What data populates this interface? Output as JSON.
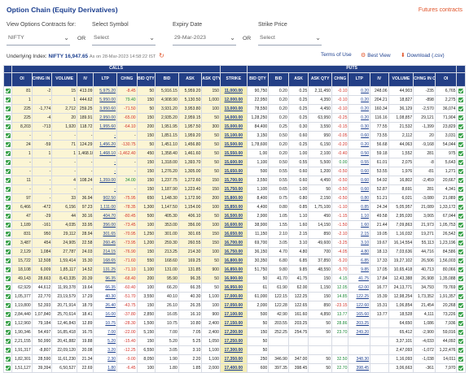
{
  "header": {
    "title": "Option Chain (Equity Derivatives)",
    "futures_link": "Futures contracts"
  },
  "filters": {
    "view_label": "View Options Contracts for:",
    "view_value": "NIFTY",
    "or1": "OR",
    "symbol_label": "Select Symbol",
    "symbol_value": "Select",
    "expiry_label": "Expiry Date",
    "expiry_value": "29-Mar-2023",
    "or2": "OR",
    "strike_label": "Strike Price",
    "strike_value": "Select"
  },
  "underlying": {
    "label": "Underlying Index:",
    "value": "NIFTY 16,947.65",
    "as_of": "As on 28-Mar-2023 14:58:22 IST"
  },
  "actions": {
    "terms": "Terms of Use",
    "best_view": "Best View",
    "download": "Download (.csv)"
  },
  "table": {
    "group_calls": "CALLS",
    "group_puts": "PUTS",
    "columns": [
      "OI",
      "CHNG IN OI",
      "VOLUME",
      "IV",
      "LTP",
      "CHNG",
      "BID QTY",
      "BID",
      "ASK",
      "ASK QTY",
      "STRIKE",
      "BID QTY",
      "BID",
      "ASK",
      "ASK QTY",
      "CHNG",
      "LTP",
      "IV",
      "VOLUME",
      "CHNG IN OI",
      "OI"
    ],
    "rows": [
      {
        "itm": true,
        "cells": [
          "81",
          "-2",
          "15",
          "413.09",
          "5,975.20",
          "-8.45",
          "50",
          "5,916.15",
          "5,959.20",
          "150",
          "11,000.00",
          "90,750",
          "0.20",
          "0.25",
          "2,11,450",
          "-0.10",
          "0.20",
          "248.06",
          "44,903",
          "-235",
          "6,765"
        ]
      },
      {
        "itm": true,
        "cells": [
          "1",
          "-",
          "1",
          "444.62",
          "5,950.00",
          "79.40",
          "150",
          "4,908.90",
          "5,130.50",
          "1,000",
          "12,000.00",
          "22,950",
          "0.20",
          "0.25",
          "4,350",
          "-0.10",
          "0.20",
          "204.21",
          "18,827",
          "-898",
          "2,275"
        ]
      },
      {
        "itm": true,
        "cells": [
          "225",
          "-1,774",
          "2,712",
          "259.25",
          "3,950.60",
          "-71.50",
          "50",
          "3,931.20",
          "3,953.80",
          "100",
          "13,000.00",
          "78,550",
          "0.20",
          "0.25",
          "4,450",
          "-0.10",
          "0.20",
          "160.34",
          "36,129",
          "-2,570",
          "36,074"
        ]
      },
      {
        "itm": true,
        "cells": [
          "225",
          "-4",
          "20",
          "189.91",
          "2,950.00",
          "-65.00",
          "150",
          "2,935.20",
          "2,959.15",
          "50",
          "14,000.00",
          "1,28,250",
          "0.20",
          "0.25",
          "63,950",
          "-0.25",
          "0.20",
          "116.16",
          "1,08,857",
          "29,121",
          "71,904"
        ]
      },
      {
        "itm": true,
        "cells": [
          "8,203",
          "-713",
          "1,920",
          "118.72",
          "1,955.60",
          "-64.10",
          "200",
          "1,951.95",
          "1,957.50",
          "300",
          "15,000.00",
          "84,400",
          "0.25",
          "0.30",
          "3,550",
          "-0.15",
          "0.30",
          "77.55",
          "21,532",
          "-1,399",
          "23,829"
        ]
      },
      {
        "itm": true,
        "cells": [
          "-",
          "-",
          "-",
          "-",
          "-",
          "-",
          "150",
          "1,851.15",
          "1,959.20",
          "50",
          "15,100.00",
          "3,150",
          "0.50",
          "0.60",
          "950",
          "-0.05",
          "0.60",
          "73.55",
          "2,112",
          "20",
          "3,031"
        ]
      },
      {
        "itm": true,
        "cells": [
          "24",
          "-59",
          "71",
          "124.29",
          "1,456.20",
          "-130.75",
          "50",
          "1,451.10",
          "1,456.80",
          "50",
          "15,500.00",
          "1,78,600",
          "0.20",
          "0.25",
          "6,150",
          "-0.20",
          "0.20",
          "56.68",
          "44,063",
          "-9,168",
          "54,044"
        ]
      },
      {
        "itm": true,
        "cells": [
          "1",
          "1",
          "1",
          "1,468.10",
          "1,468.10",
          "-1,462.40",
          "450",
          "1,358.40",
          "1,461.60",
          "50",
          "15,550.00",
          "1,00",
          "0.20",
          "1.00",
          "2,100",
          "-0.40",
          "0.50",
          "59.18",
          "1,552",
          "281",
          "975"
        ]
      },
      {
        "itm": true,
        "cells": [
          "-",
          "-",
          "-",
          "-",
          "-",
          "-",
          "150",
          "1,318.00",
          "1,393.70",
          "50",
          "15,600.00",
          "1,100",
          "0.50",
          "0.55",
          "5,500",
          "0.00",
          "0.55",
          "61.01",
          "2,075",
          "-8",
          "5,643"
        ]
      },
      {
        "itm": true,
        "cells": [
          "-",
          "-",
          "-",
          "-",
          "-",
          "-",
          "150",
          "1,276.20",
          "1,305.00",
          "50",
          "15,650.00",
          "500",
          "0.55",
          "0.60",
          "1,200",
          "-0.50",
          "0.60",
          "53.55",
          "1,976",
          "-81",
          "1,271"
        ]
      },
      {
        "itm": true,
        "cells": [
          "11",
          "-",
          "4",
          "108.24",
          "1,359.00",
          "34.00",
          "150",
          "1,237.75",
          "1,272.60",
          "150",
          "15,700.00",
          "3,550",
          "0.55",
          "0.60",
          "4,450",
          "-0.50",
          "0.60",
          "54.92",
          "16,802",
          "-2,459",
          "20,667"
        ]
      },
      {
        "itm": true,
        "cells": [
          "-",
          "-",
          "-",
          "-",
          "-",
          "-",
          "150",
          "1,187.90",
          "1,223.40",
          "150",
          "15,750.00",
          "1,100",
          "0.65",
          "1.00",
          "50",
          "-0.50",
          "0.60",
          "52.87",
          "8,691",
          "281",
          "4,341"
        ]
      },
      {
        "itm": true,
        "cells": [
          "97",
          "-",
          "33",
          "36.94",
          "902.50",
          "-75.95",
          "650",
          "1,148.30",
          "1,172.90",
          "200",
          "15,800.00",
          "8,400",
          "0.75",
          "0.80",
          "2,150",
          "-0.50",
          "0.80",
          "51.21",
          "6,021",
          "-3,080",
          "21,089"
        ]
      },
      {
        "itm": true,
        "cells": [
          "6,466",
          "-472",
          "6,156",
          "97.23",
          "1,111.00",
          "-78.35",
          "1,300",
          "1,147.50",
          "1,154.00",
          "100",
          "15,850.00",
          "4,400",
          "0.80",
          "0.85",
          "1,75,100",
          "-1.10",
          "0.85",
          "24.34",
          "5,05,957",
          "21,089",
          "1,33,172"
        ]
      },
      {
        "itm": true,
        "cells": [
          "47",
          "-29",
          "44",
          "30.16",
          "404.70",
          "-80.45",
          "500",
          "405.30",
          "406.10",
          "50",
          "16,500.00",
          "2,900",
          "1.05",
          "1.10",
          "450",
          "-1.15",
          "1.10",
          "49.58",
          "2,95,020",
          "3,065",
          "67,044"
        ]
      },
      {
        "itm": true,
        "cells": [
          "1,189",
          "-161",
          "4,035",
          "33.95",
          "356.00",
          "-73.45",
          "100",
          "353.00",
          "356.00",
          "100",
          "16,600.00",
          "38,900",
          "1.55",
          "1.60",
          "14,150",
          "-1.50",
          "1.60",
          "21.44",
          "7,09,863",
          "21,973",
          "1,05,753"
        ]
      },
      {
        "itm": true,
        "cells": [
          "831",
          "950",
          "29,112",
          "28.94",
          "301.65",
          "-70.95",
          "1,250",
          "301.00",
          "301.65",
          "150",
          "16,650.00",
          "11,150",
          "2.10",
          "2.15",
          "850",
          "-2.10",
          "2.15",
          "19.05",
          "1,16,032",
          "19,271",
          "26,542"
        ]
      },
      {
        "itm": true,
        "cells": [
          "3,487",
          "454",
          "24,905",
          "22.58",
          "260.45",
          "-73.95",
          "1,200",
          "259.30",
          "260.55",
          "150",
          "16,700.00",
          "69,700",
          "3.05",
          "3.10",
          "49,600",
          "-3.25",
          "3.10",
          "19.67",
          "16,14,554",
          "55,113",
          "1,23,196"
        ]
      },
      {
        "itm": true,
        "cells": [
          "2,129",
          "1,084",
          "27,787",
          "24.03",
          "214.15",
          "-76.90",
          "150",
          "213.25",
          "214.30",
          "100",
          "16,750.00",
          "36,150",
          "4.70",
          "4.80",
          "700",
          "-4.05",
          "4.80",
          "18.13",
          "7,03,636",
          "44,716",
          "84,586"
        ]
      },
      {
        "itm": true,
        "cells": [
          "15,722",
          "12,508",
          "1,59,414",
          "15.30",
          "168.65",
          "-71.60",
          "550",
          "168.60",
          "169.25",
          "50",
          "16,800.00",
          "30,350",
          "6.80",
          "6.85",
          "37,850",
          "-5.20",
          "6.85",
          "17.33",
          "19,27,102",
          "26,506",
          "1,56,003"
        ]
      },
      {
        "itm": true,
        "cells": [
          "18,108",
          "6,009",
          "1,85,117",
          "14.52",
          "131.25",
          "-71.10",
          "1,100",
          "131.00",
          "131.85",
          "900",
          "16,850.00",
          "51,750",
          "9.80",
          "9.85",
          "48,550",
          "-5.70",
          "9.85",
          "17.05",
          "10,65,418",
          "40,713",
          "80,066"
        ]
      },
      {
        "itm": true,
        "cells": [
          "49,143",
          "28,663",
          "8,43,335",
          "20.39",
          "96.35",
          "-68.40",
          "200",
          "95.90",
          "96.35",
          "50",
          "16,900.00",
          "50",
          "41.70",
          "41.75",
          "150",
          "4.15",
          "41.75",
          "17.84",
          "12,43,388",
          "26,908",
          "1,35,088"
        ]
      },
      {
        "itm": false,
        "cells": [
          "62,929",
          "44,612",
          "11,99,378",
          "19.64",
          "66.35",
          "-60.40",
          "100",
          "66.20",
          "66.35",
          "50",
          "16,950.00",
          "61",
          "61.90",
          "62.00",
          "1,150",
          "12.05",
          "62.00",
          "16.77",
          "24,13,771",
          "34,793",
          "79,769"
        ]
      },
      {
        "itm": false,
        "cells": [
          "1,05,377",
          "22,770",
          "23,19,579",
          "17.29",
          "40.30",
          "-51.70",
          "3,550",
          "40.10",
          "40.30",
          "1,100",
          "17,000.00",
          "61,000",
          "122.15",
          "122.25",
          "150",
          "14.85",
          "122.25",
          "15.39",
          "12,98,254",
          "1,73,352",
          "1,91,357"
        ]
      },
      {
        "itm": false,
        "cells": [
          "1,19,800",
          "52,393",
          "20,71,914",
          "18.79",
          "26.40",
          "-43.75",
          "150",
          "26.10",
          "26.35",
          "100",
          "17,050.00",
          "2,000",
          "122.28",
          "122.65",
          "850",
          "-23.15",
          "122.60",
          "15.31",
          "1,06,854",
          "21,454",
          "20,268"
        ]
      },
      {
        "itm": false,
        "cells": [
          "2,84,440",
          "1,07,840",
          "25,70,614",
          "18.41",
          "16.00",
          "-37.80",
          "2,850",
          "16.05",
          "16.10",
          "900",
          "17,100.00",
          "500",
          "42.90",
          "161.60",
          "4,850",
          "13.77",
          "165.60",
          "13.77",
          "18,528",
          "4,111",
          "73,226"
        ]
      },
      {
        "itm": false,
        "cells": [
          "1,12,960",
          "79,184",
          "12,46,843",
          "12.89",
          "10.75",
          "-28.30",
          "1,500",
          "10.75",
          "10.80",
          "2,400",
          "17,150.00",
          "50",
          "203.55",
          "203.25",
          "50",
          "28.86",
          "203.25",
          "",
          "64,650",
          "1,086",
          "7,936"
        ]
      },
      {
        "itm": false,
        "cells": [
          "1,90,346",
          "54,497",
          "16,85,418",
          "16.75",
          "7.00",
          "-22.00",
          "5,150",
          "7.00",
          "7.05",
          "2,400",
          "17,200.00",
          "150",
          "252.25",
          "254.75",
          "50",
          "23.70",
          "249.20",
          "",
          "65,412",
          "-2,900",
          "59,016"
        ]
      },
      {
        "itm": false,
        "cells": [
          "2,21,155",
          "50,990",
          "20,41,882",
          "19.88",
          "5.20",
          "-15.40",
          "150",
          "5.20",
          "5.25",
          "1,050",
          "17,250.00",
          "50",
          "",
          "",
          "",
          "",
          "",
          "",
          "3,37,101",
          "-4,033",
          "44,092"
        ]
      },
      {
        "itm": false,
        "cells": [
          "1,91,317",
          "-8,807",
          "22,09,120",
          "20.08",
          "3.20",
          "-12.25",
          "6,550",
          "3.05",
          "3.10",
          "1,100",
          "17,300.00",
          "50",
          "",
          "",
          "",
          "",
          "",
          "",
          "2,47,093",
          "-1,072",
          "1,22,476"
        ]
      },
      {
        "itm": false,
        "cells": [
          "1,82,301",
          "28,590",
          "11,61,230",
          "21.34",
          "2.30",
          "-9.00",
          "8,050",
          "1.90",
          "2.20",
          "1,100",
          "17,350.00",
          "250",
          "346.90",
          "347.00",
          "50",
          "32.50",
          "348.30",
          "",
          "1,16,093",
          "-1,038",
          "14,011"
        ]
      },
      {
        "itm": false,
        "cells": [
          "1,51,127",
          "39,394",
          "6,50,527",
          "22.69",
          "1.80",
          "-6.45",
          "100",
          "1.80",
          "1.85",
          "2,000",
          "17,400.00",
          "600",
          "397.35",
          "398.45",
          "50",
          "22.70",
          "398.45",
          "",
          "3,06,663",
          "-361",
          "7,970"
        ]
      }
    ]
  }
}
